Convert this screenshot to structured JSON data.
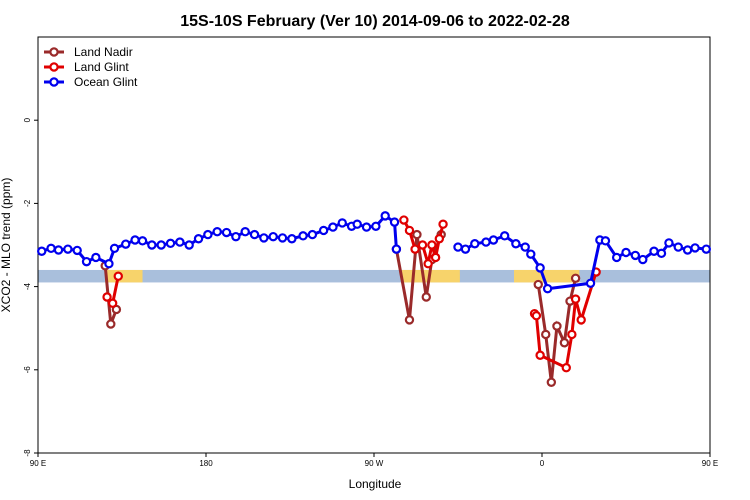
{
  "chart_data": {
    "type": "line",
    "title": "15S-10S February (Ver 10)   2014-09-06 to 2022-02-28",
    "xlabel": "Longitude",
    "ylabel": "XCO2 - MLO trend (ppm)",
    "xlim": [
      90,
      450
    ],
    "ylim": [
      -8,
      2
    ],
    "x_ticks": [
      {
        "value": 90,
        "label": "90 E"
      },
      {
        "value": 180,
        "label": "180"
      },
      {
        "value": 270,
        "label": "90 W"
      },
      {
        "value": 360,
        "label": "0"
      },
      {
        "value": 450,
        "label": "90 E"
      },
      {
        "value": 540,
        "label": "180"
      }
    ],
    "y_ticks": [
      {
        "value": 0,
        "label": "0"
      },
      {
        "value": -2,
        "label": "-2"
      },
      {
        "value": -4,
        "label": "-4"
      },
      {
        "value": -6,
        "label": "-6"
      },
      {
        "value": -8,
        "label": "-8"
      }
    ],
    "legend": "top-left",
    "land_strip": {
      "ymin": -3.9,
      "ymax": -3.6,
      "land_color": "#f7d36b",
      "ocean_color": "#a9bfdc"
    },
    "land_regions": [
      [
        126,
        146
      ],
      [
        285,
        316
      ],
      [
        345,
        380
      ],
      [
        486,
        506
      ]
    ],
    "series": [
      {
        "name": "Land Nadir",
        "color": "#9a2a2a",
        "x": [
          126,
          129,
          132,
          282,
          289,
          293,
          298,
          301,
          306,
          358,
          362,
          365,
          368,
          372,
          375,
          378,
          486,
          489,
          492
        ],
        "y": [
          -3.5,
          -4.9,
          -4.55,
          -3.1,
          -4.8,
          -2.75,
          -4.25,
          -3.35,
          -2.75,
          -3.95,
          -5.15,
          -6.3,
          -4.95,
          -5.35,
          -4.35,
          -3.8,
          -3.5,
          -4.9,
          -4.55
        ]
      },
      {
        "name": "Land Glint",
        "color": "#e00000",
        "x": [
          127,
          130,
          133,
          286,
          289,
          292,
          296,
          299,
          301,
          303,
          305,
          307,
          356,
          357,
          359,
          373,
          376,
          378,
          381,
          389,
          487,
          490,
          493
        ],
        "y": [
          -4.25,
          -4.4,
          -3.75,
          -2.4,
          -2.65,
          -3.1,
          -3.0,
          -3.45,
          -3.0,
          -3.3,
          -2.85,
          -2.5,
          -4.65,
          -4.7,
          -5.65,
          -5.95,
          -5.15,
          -4.3,
          -4.8,
          -3.65,
          -4.25,
          -4.4,
          -3.75
        ]
      },
      {
        "name": "Ocean Glint",
        "color": "#0000ee",
        "x": [
          92,
          97,
          101,
          106,
          111,
          116,
          121,
          128,
          131,
          137,
          142,
          146,
          151,
          156,
          161,
          166,
          171,
          176,
          181,
          186,
          191,
          196,
          201,
          206,
          211,
          216,
          221,
          226,
          232,
          237,
          243,
          248,
          253,
          258,
          261,
          266,
          271,
          276,
          281,
          282,
          315,
          319,
          324,
          330,
          334,
          340,
          346,
          351,
          354,
          359,
          363,
          386,
          391,
          394,
          400,
          405,
          410,
          414,
          420,
          424,
          428,
          433,
          438,
          442,
          448
        ],
        "y": [
          -3.15,
          -3.08,
          -3.12,
          -3.1,
          -3.13,
          -3.4,
          -3.3,
          -3.45,
          -3.08,
          -2.98,
          -2.88,
          -2.9,
          -3.0,
          -3.0,
          -2.96,
          -2.93,
          -3.0,
          -2.85,
          -2.75,
          -2.68,
          -2.7,
          -2.8,
          -2.68,
          -2.75,
          -2.83,
          -2.8,
          -2.83,
          -2.85,
          -2.78,
          -2.75,
          -2.65,
          -2.57,
          -2.47,
          -2.55,
          -2.5,
          -2.57,
          -2.55,
          -2.3,
          -2.45,
          -3.1,
          -3.05,
          -3.1,
          -2.97,
          -2.93,
          -2.88,
          -2.78,
          -2.97,
          -3.05,
          -3.22,
          -3.55,
          -4.05,
          -3.92,
          -2.88,
          -2.9,
          -3.3,
          -3.18,
          -3.25,
          -3.35,
          -3.15,
          -3.2,
          -2.95,
          -3.05,
          -3.12,
          -3.07,
          -3.1
        ]
      }
    ]
  }
}
